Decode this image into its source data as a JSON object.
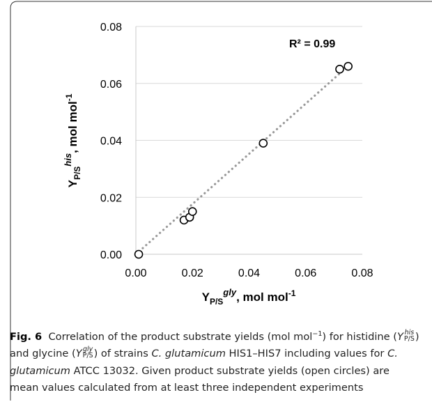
{
  "chart_data": {
    "type": "scatter",
    "xlim": [
      0,
      0.08
    ],
    "ylim": [
      0,
      0.08
    ],
    "x_ticks": [
      "0.00",
      "0.02",
      "0.04",
      "0.06",
      "0.08"
    ],
    "y_ticks": [
      "0.00",
      "0.02",
      "0.04",
      "0.06",
      "0.08"
    ],
    "xlabel": {
      "main": "Y",
      "sub": "P/S",
      "sup": "gly",
      "unit": ", mol mol",
      "unit_sup": "-1"
    },
    "ylabel": {
      "main": "Y",
      "sub": "P/S",
      "sup": "his",
      "unit": ", mol mol",
      "unit_sup": "-1"
    },
    "annotation": "R² = 0.99",
    "trendline": {
      "style": "dotted",
      "color": "#999999",
      "x": [
        0.0,
        0.076
      ],
      "y": [
        0.0,
        0.067
      ]
    },
    "points": [
      {
        "x": 0.001,
        "y": 0.0
      },
      {
        "x": 0.017,
        "y": 0.012
      },
      {
        "x": 0.019,
        "y": 0.013
      },
      {
        "x": 0.02,
        "y": 0.015
      },
      {
        "x": 0.045,
        "y": 0.039
      },
      {
        "x": 0.072,
        "y": 0.065
      },
      {
        "x": 0.075,
        "y": 0.066
      }
    ],
    "grid": "horizontal"
  },
  "caption": {
    "label": "Fig. 6",
    "t1": "Correlation of the product substrate yields (mol mol",
    "t1_sup": "−1",
    "t2": ") for histidine (",
    "his_sup": "his",
    "ps_sub": "P/S",
    "t3": ") and glycine (",
    "gly_sup": "gly",
    "t4": ") of strains ",
    "species": "C. glutamicum",
    "t5": " HIS1–HIS7 including values for ",
    "t6": " ATCC 13032. Given product substrate yields (open circles) are mean values calculated from at least three independent experiments"
  }
}
